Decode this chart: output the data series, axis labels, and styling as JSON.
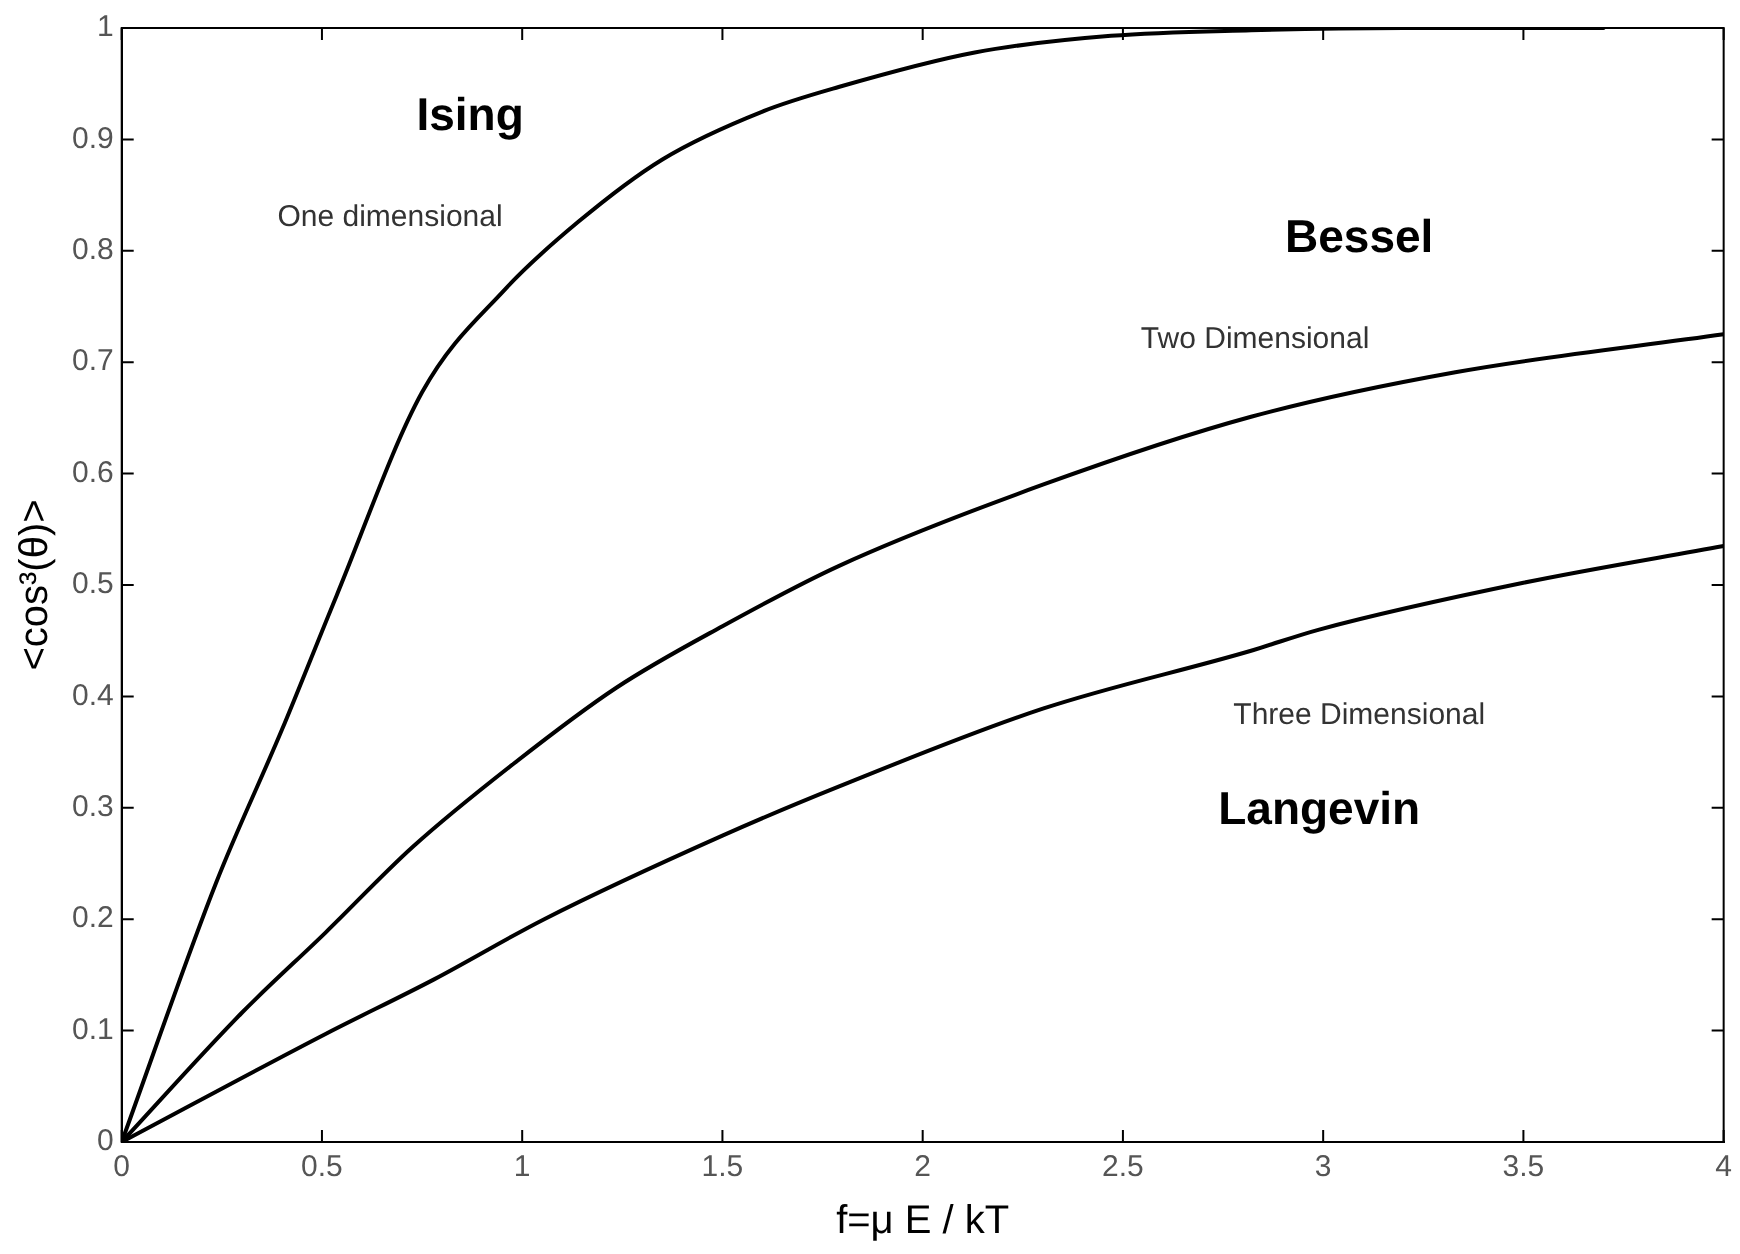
{
  "chart_data": {
    "type": "line",
    "xlabel": "f=μ E / kT",
    "ylabel": "<cos³(θ)>",
    "xlim": [
      0,
      4
    ],
    "ylim": [
      0,
      1
    ],
    "xticks": [
      0,
      0.5,
      1,
      1.5,
      2,
      2.5,
      3,
      3.5,
      4
    ],
    "yticks": [
      0,
      0.1,
      0.2,
      0.3,
      0.4,
      0.5,
      0.6,
      0.7,
      0.8,
      0.9,
      1
    ],
    "grid": false,
    "legend": false,
    "marker": "none",
    "line_style": "solid",
    "series": [
      {
        "color": "#000000",
        "x": [
          0,
          0.236,
          0.4,
          0.536,
          0.75,
          0.956,
          1.14,
          1.35,
          1.6,
          1.79,
          2.13,
          2.47,
          2.82,
          3.2,
          3.7
        ],
        "values": [
          0,
          0.233,
          0.37,
          0.49,
          0.673,
          0.765,
          0.826,
          0.882,
          0.925,
          0.947,
          0.978,
          0.993,
          0.998,
          1,
          1
        ]
      },
      {
        "color": "#000000",
        "x": [
          0,
          0.3,
          0.509,
          0.727,
          0.98,
          1.236,
          1.5,
          1.79,
          2.3,
          2.82,
          3.33,
          4
        ],
        "values": [
          0,
          0.116,
          0.188,
          0.265,
          0.34,
          0.408,
          0.463,
          0.517,
          0.59,
          0.651,
          0.691,
          0.725
        ]
      },
      {
        "color": "#000000",
        "x": [
          0,
          0.509,
          0.78,
          1.055,
          1.5,
          1.79,
          2.3,
          2.82,
          2.99,
          3.5,
          4
        ],
        "values": [
          0,
          0.097,
          0.146,
          0.2,
          0.275,
          0.319,
          0.389,
          0.441,
          0.46,
          0.502,
          0.535
        ]
      }
    ],
    "annotations": [
      "Ising",
      "One dimensional",
      "Bessel",
      "Two Dimensional",
      "Langevin",
      "Three Dimensional"
    ]
  }
}
